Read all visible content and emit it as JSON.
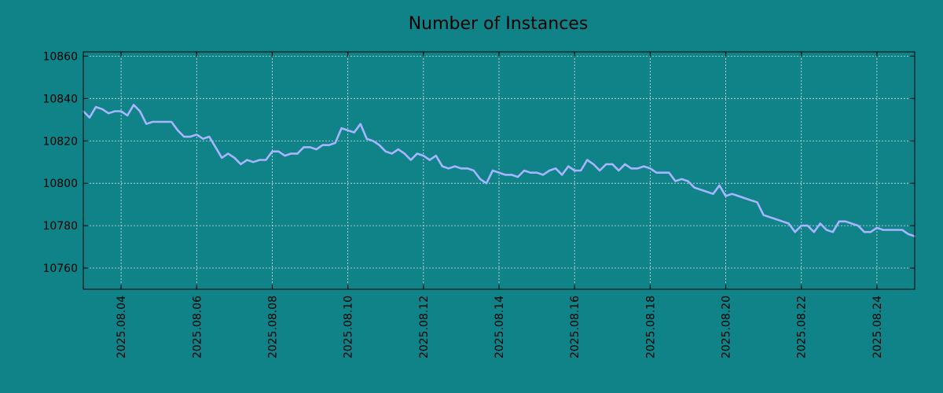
{
  "chart_data": {
    "type": "line",
    "title": "Number of Instances",
    "xlabel": "",
    "ylabel": "",
    "x_tick_labels": [
      "2025.08.04",
      "2025.08.06",
      "2025.08.08",
      "2025.08.10",
      "2025.08.12",
      "2025.08.14",
      "2025.08.16",
      "2025.08.18",
      "2025.08.20",
      "2025.08.22",
      "2025.08.24"
    ],
    "y_tick_labels": [
      "10760",
      "10780",
      "10800",
      "10820",
      "10840",
      "10860"
    ],
    "xlim": [
      "2025-08-03 00:00",
      "2025-08-25 00:00"
    ],
    "ylim": [
      10750,
      10862
    ],
    "grid": true,
    "line_color": "#a7b4ff",
    "background_color": "#0f8387",
    "series": [
      {
        "x": [
          "2025-08-03 00:00",
          "2025-08-03 04:00",
          "2025-08-03 08:00",
          "2025-08-03 12:00",
          "2025-08-03 16:00",
          "2025-08-03 20:00",
          "2025-08-04 00:00",
          "2025-08-04 04:00",
          "2025-08-04 08:00",
          "2025-08-04 12:00",
          "2025-08-04 16:00",
          "2025-08-04 20:00",
          "2025-08-05 00:00",
          "2025-08-05 04:00",
          "2025-08-05 08:00",
          "2025-08-05 12:00",
          "2025-08-05 16:00",
          "2025-08-05 20:00",
          "2025-08-06 00:00",
          "2025-08-06 04:00",
          "2025-08-06 08:00",
          "2025-08-06 12:00",
          "2025-08-06 16:00",
          "2025-08-06 20:00",
          "2025-08-07 00:00",
          "2025-08-07 04:00",
          "2025-08-07 08:00",
          "2025-08-07 12:00",
          "2025-08-07 16:00",
          "2025-08-07 20:00",
          "2025-08-08 00:00",
          "2025-08-08 04:00",
          "2025-08-08 08:00",
          "2025-08-08 12:00",
          "2025-08-08 16:00",
          "2025-08-08 20:00",
          "2025-08-09 00:00",
          "2025-08-09 04:00",
          "2025-08-09 08:00",
          "2025-08-09 12:00",
          "2025-08-09 16:00",
          "2025-08-09 20:00",
          "2025-08-10 00:00",
          "2025-08-10 04:00",
          "2025-08-10 08:00",
          "2025-08-10 12:00",
          "2025-08-10 16:00",
          "2025-08-10 20:00",
          "2025-08-11 00:00",
          "2025-08-11 04:00",
          "2025-08-11 08:00",
          "2025-08-11 12:00",
          "2025-08-11 16:00",
          "2025-08-11 20:00",
          "2025-08-12 00:00",
          "2025-08-12 04:00",
          "2025-08-12 08:00",
          "2025-08-12 12:00",
          "2025-08-12 16:00",
          "2025-08-12 20:00",
          "2025-08-13 00:00",
          "2025-08-13 04:00",
          "2025-08-13 08:00",
          "2025-08-13 12:00",
          "2025-08-13 16:00",
          "2025-08-13 20:00",
          "2025-08-14 00:00",
          "2025-08-14 04:00",
          "2025-08-14 08:00",
          "2025-08-14 12:00",
          "2025-08-14 16:00",
          "2025-08-14 20:00",
          "2025-08-15 00:00",
          "2025-08-15 04:00",
          "2025-08-15 08:00",
          "2025-08-15 12:00",
          "2025-08-15 16:00",
          "2025-08-15 20:00",
          "2025-08-16 00:00",
          "2025-08-16 04:00",
          "2025-08-16 08:00",
          "2025-08-16 12:00",
          "2025-08-16 16:00",
          "2025-08-16 20:00",
          "2025-08-17 00:00",
          "2025-08-17 04:00",
          "2025-08-17 08:00",
          "2025-08-17 12:00",
          "2025-08-17 16:00",
          "2025-08-17 20:00",
          "2025-08-18 00:00",
          "2025-08-18 04:00",
          "2025-08-18 08:00",
          "2025-08-18 12:00",
          "2025-08-18 16:00",
          "2025-08-18 20:00",
          "2025-08-19 00:00",
          "2025-08-19 04:00",
          "2025-08-19 08:00",
          "2025-08-19 12:00",
          "2025-08-19 16:00",
          "2025-08-19 20:00",
          "2025-08-20 00:00",
          "2025-08-20 04:00",
          "2025-08-20 08:00",
          "2025-08-20 12:00",
          "2025-08-20 16:00",
          "2025-08-20 20:00",
          "2025-08-21 00:00",
          "2025-08-21 04:00",
          "2025-08-21 08:00",
          "2025-08-21 12:00",
          "2025-08-21 16:00",
          "2025-08-21 20:00",
          "2025-08-22 00:00",
          "2025-08-22 04:00",
          "2025-08-22 08:00",
          "2025-08-22 12:00",
          "2025-08-22 16:00",
          "2025-08-22 20:00",
          "2025-08-23 00:00",
          "2025-08-23 04:00",
          "2025-08-23 08:00",
          "2025-08-23 12:00",
          "2025-08-23 16:00",
          "2025-08-23 20:00",
          "2025-08-24 00:00",
          "2025-08-24 04:00",
          "2025-08-24 08:00",
          "2025-08-24 12:00",
          "2025-08-24 16:00",
          "2025-08-24 20:00",
          "2025-08-25 00:00"
        ],
        "values": [
          10834,
          10831,
          10836,
          10835,
          10833,
          10834,
          10834,
          10832,
          10837,
          10834,
          10828,
          10829,
          10829,
          10829,
          10829,
          10825,
          10822,
          10822,
          10823,
          10821,
          10822,
          10817,
          10812,
          10814,
          10812,
          10809,
          10811,
          10810,
          10811,
          10811,
          10815,
          10815,
          10813,
          10814,
          10814,
          10817,
          10817,
          10816,
          10818,
          10818,
          10819,
          10826,
          10825,
          10824,
          10828,
          10821,
          10820,
          10818,
          10815,
          10814,
          10816,
          10814,
          10811,
          10814,
          10813,
          10811,
          10813,
          10808,
          10807,
          10808,
          10807,
          10807,
          10806,
          10802,
          10800,
          10806,
          10805,
          10804,
          10804,
          10803,
          10806,
          10805,
          10805,
          10804,
          10806,
          10807,
          10804,
          10808,
          10806,
          10806,
          10811,
          10809,
          10806,
          10809,
          10809,
          10806,
          10809,
          10807,
          10807,
          10808,
          10807,
          10805,
          10805,
          10805,
          10801,
          10802,
          10801,
          10798,
          10797,
          10796,
          10795,
          10799,
          10794,
          10795,
          10794,
          10793,
          10792,
          10791,
          10785,
          10784,
          10783,
          10782,
          10781,
          10777,
          10780,
          10780,
          10777,
          10781,
          10778,
          10777,
          10782,
          10782,
          10781,
          10780,
          10777,
          10777,
          10779,
          10778,
          10778,
          10778,
          10778,
          10776,
          10775
        ]
      }
    ]
  }
}
